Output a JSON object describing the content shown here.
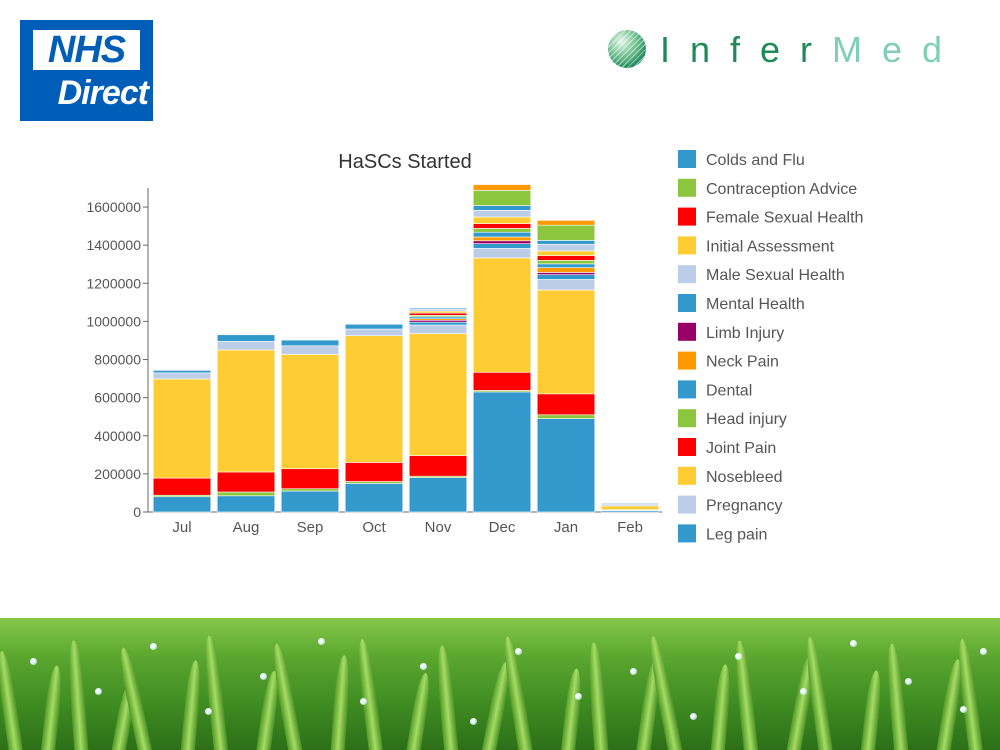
{
  "header": {
    "nhs_logo": {
      "line1": "NHS",
      "line2": "Direct"
    },
    "infermed_logo": {
      "part1": "Infer",
      "part2": "Med",
      "icon": "sphere-logo-icon"
    }
  },
  "chart_data": {
    "type": "bar",
    "stacked": true,
    "title": "HaSCs Started",
    "xlabel": "",
    "ylabel": "",
    "ylim": [
      0,
      1700000
    ],
    "yticks": [
      0,
      200000,
      400000,
      600000,
      800000,
      1000000,
      1200000,
      1400000,
      1600000
    ],
    "ytick_labels": [
      "0",
      "200000",
      "400000",
      "600000",
      "800000",
      "1000000",
      "1200000",
      "1400000",
      "1600000"
    ],
    "grid": false,
    "legend_position": "right",
    "categories": [
      "Jul",
      "Aug",
      "Sep",
      "Oct",
      "Nov",
      "Dec",
      "Jan",
      "Feb"
    ],
    "series": [
      {
        "name": "Colds and Flu",
        "color": "#3399cc",
        "values": [
          80000,
          85000,
          110000,
          150000,
          180000,
          630000,
          490000,
          8000
        ]
      },
      {
        "name": "Contraception Advice",
        "color": "#8cc63f",
        "values": [
          8000,
          20000,
          12000,
          10000,
          8000,
          8000,
          20000,
          1000
        ]
      },
      {
        "name": "Female Sexual Health",
        "color": "#ff0000",
        "values": [
          90000,
          105000,
          105000,
          100000,
          108000,
          95000,
          110000,
          3000
        ]
      },
      {
        "name": "Initial Assessment",
        "color": "#ffcc33",
        "values": [
          520000,
          640000,
          600000,
          665000,
          640000,
          600000,
          545000,
          20000
        ]
      },
      {
        "name": "Male Sexual Health",
        "color": "#bccde8",
        "values": [
          32000,
          45000,
          45000,
          35000,
          45000,
          50000,
          55000,
          10000
        ]
      },
      {
        "name": "Mental Health",
        "color": "#3399cc",
        "values": [
          13000,
          35000,
          30000,
          25000,
          15000,
          25000,
          25000,
          5000
        ]
      },
      {
        "name": "Limb Injury",
        "color": "#990066",
        "values": [
          0,
          0,
          0,
          0,
          10000,
          15000,
          12000,
          2000
        ]
      },
      {
        "name": "Neck Pain",
        "color": "#ff9900",
        "values": [
          0,
          0,
          0,
          0,
          8000,
          20000,
          25000,
          2000
        ]
      },
      {
        "name": "Dental",
        "color": "#3399cc",
        "values": [
          0,
          0,
          0,
          0,
          10000,
          25000,
          20000,
          2000
        ]
      },
      {
        "name": "Head injury",
        "color": "#8cc63f",
        "values": [
          0,
          0,
          0,
          0,
          8000,
          20000,
          18000,
          1000
        ]
      },
      {
        "name": "Joint Pain",
        "color": "#ff0000",
        "values": [
          0,
          0,
          0,
          0,
          12000,
          25000,
          25000,
          2000
        ]
      },
      {
        "name": "Nosebleed",
        "color": "#ffcc33",
        "values": [
          0,
          0,
          0,
          0,
          10000,
          35000,
          25000,
          3000
        ]
      },
      {
        "name": "Pregnancy",
        "color": "#bccde8",
        "values": [
          0,
          0,
          0,
          0,
          10000,
          35000,
          35000,
          2000
        ]
      },
      {
        "name": "Leg pain",
        "color": "#3399cc",
        "values": [
          0,
          0,
          0,
          0,
          6000,
          25000,
          20000,
          1000
        ]
      },
      {
        "name": "Head injury (top)",
        "color": "#8cc63f",
        "values": [
          0,
          0,
          0,
          0,
          0,
          80000,
          80000,
          0
        ]
      },
      {
        "name": "Neck Pain (top)",
        "color": "#ff9900",
        "values": [
          0,
          0,
          0,
          0,
          0,
          30000,
          25000,
          0
        ]
      }
    ],
    "legend": [
      {
        "name": "Colds and Flu",
        "color": "#3399cc"
      },
      {
        "name": "Contraception Advice",
        "color": "#8cc63f"
      },
      {
        "name": "Female Sexual Health",
        "color": "#ff0000"
      },
      {
        "name": "Initial Assessment",
        "color": "#ffcc33"
      },
      {
        "name": "Male Sexual Health",
        "color": "#bccde8"
      },
      {
        "name": "Mental Health",
        "color": "#3399cc"
      },
      {
        "name": "Limb Injury",
        "color": "#990066"
      },
      {
        "name": "Neck Pain",
        "color": "#ff9900"
      },
      {
        "name": "Dental",
        "color": "#3399cc"
      },
      {
        "name": "Head injury",
        "color": "#8cc63f"
      },
      {
        "name": "Joint Pain",
        "color": "#ff0000"
      },
      {
        "name": "Nosebleed",
        "color": "#ffcc33"
      },
      {
        "name": "Pregnancy",
        "color": "#bccde8"
      },
      {
        "name": "Leg pain",
        "color": "#3399cc"
      }
    ]
  }
}
